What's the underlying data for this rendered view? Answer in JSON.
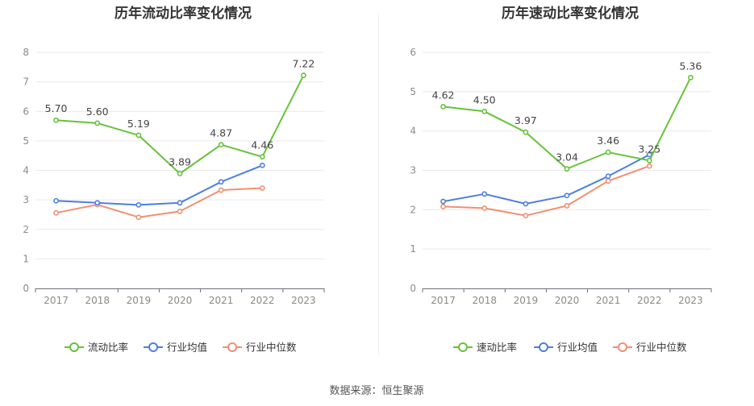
{
  "chart_data": [
    {
      "type": "line",
      "title": "历年流动比率变化情况",
      "categories": [
        "2017",
        "2018",
        "2019",
        "2020",
        "2021",
        "2022",
        "2023"
      ],
      "ylim": [
        0,
        8
      ],
      "yticks": [
        0,
        1,
        2,
        3,
        4,
        5,
        6,
        7,
        8
      ],
      "grid": true,
      "legend_position": "bottom",
      "series": [
        {
          "name": "流动比率",
          "color": "#67c23a",
          "values": [
            5.7,
            5.6,
            5.19,
            3.89,
            4.87,
            4.46,
            7.22
          ],
          "labels": [
            "5.70",
            "5.60",
            "5.19",
            "3.89",
            "4.87",
            "4.46",
            "7.22"
          ]
        },
        {
          "name": "行业均值",
          "color": "#4e7fe0",
          "values": [
            2.97,
            2.9,
            2.83,
            2.9,
            3.61,
            4.17,
            null
          ]
        },
        {
          "name": "行业中位数",
          "color": "#f28f73",
          "values": [
            2.56,
            2.84,
            2.41,
            2.61,
            3.33,
            3.4,
            null
          ]
        }
      ]
    },
    {
      "type": "line",
      "title": "历年速动比率变化情况",
      "categories": [
        "2017",
        "2018",
        "2019",
        "2020",
        "2021",
        "2022",
        "2023"
      ],
      "ylim": [
        0,
        6
      ],
      "yticks": [
        0,
        1,
        2,
        3,
        4,
        5,
        6
      ],
      "grid": true,
      "legend_position": "bottom",
      "series": [
        {
          "name": "速动比率",
          "color": "#67c23a",
          "values": [
            4.62,
            4.5,
            3.97,
            3.04,
            3.46,
            3.25,
            5.36
          ],
          "labels": [
            "4.62",
            "4.50",
            "3.97",
            "3.04",
            "3.46",
            "3.25",
            "5.36"
          ]
        },
        {
          "name": "行业均值",
          "color": "#4e7fe0",
          "values": [
            2.21,
            2.4,
            2.15,
            2.36,
            2.85,
            3.4,
            null
          ]
        },
        {
          "name": "行业中位数",
          "color": "#f28f73",
          "values": [
            2.08,
            2.04,
            1.85,
            2.1,
            2.73,
            3.11,
            null
          ]
        }
      ]
    }
  ],
  "footer": {
    "source": "数据来源：恒生聚源"
  }
}
